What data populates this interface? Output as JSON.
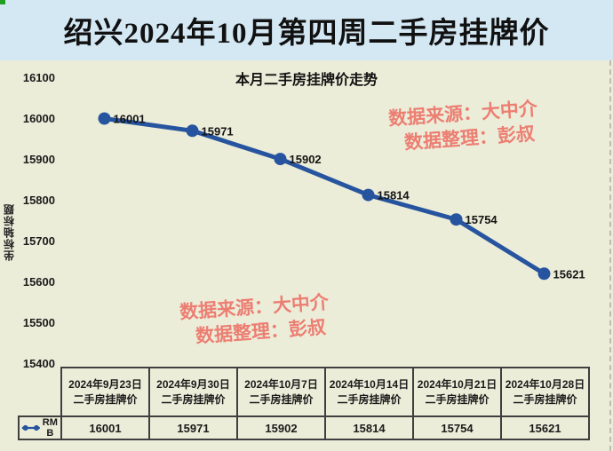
{
  "header": {
    "title": "绍兴2024年10月第四周二手房挂牌价"
  },
  "watermark": {
    "source_line": "数据来源：大中介",
    "editor_line": "数据整理：彭叔"
  },
  "chart_data": {
    "type": "line",
    "title": "本月二手房挂牌价走势",
    "ylabel": "坐标轴标题",
    "categories": [
      "2024年9月23日二手房挂牌价",
      "2024年9月30日二手房挂牌价",
      "2024年10月7日二手房挂牌价",
      "2024年10月14日二手房挂牌价",
      "2024年10月21日二手房挂牌价",
      "2024年10月28日二手房挂牌价"
    ],
    "series": [
      {
        "name": "RMB",
        "values": [
          16001,
          15971,
          15902,
          15814,
          15754,
          15621
        ]
      }
    ],
    "yticks": [
      16100,
      16000,
      15900,
      15800,
      15700,
      15600,
      15500,
      15400
    ],
    "ylim": [
      15400,
      16100
    ],
    "grid": false,
    "data_labels": true,
    "legend_position": "data-table-left",
    "line_color": "#27549f"
  },
  "colors": {
    "title_bar_bg": "#d4e8f4",
    "canvas_bg": "#ecedd9",
    "line": "#27549f",
    "watermark": "#ec7e72"
  }
}
